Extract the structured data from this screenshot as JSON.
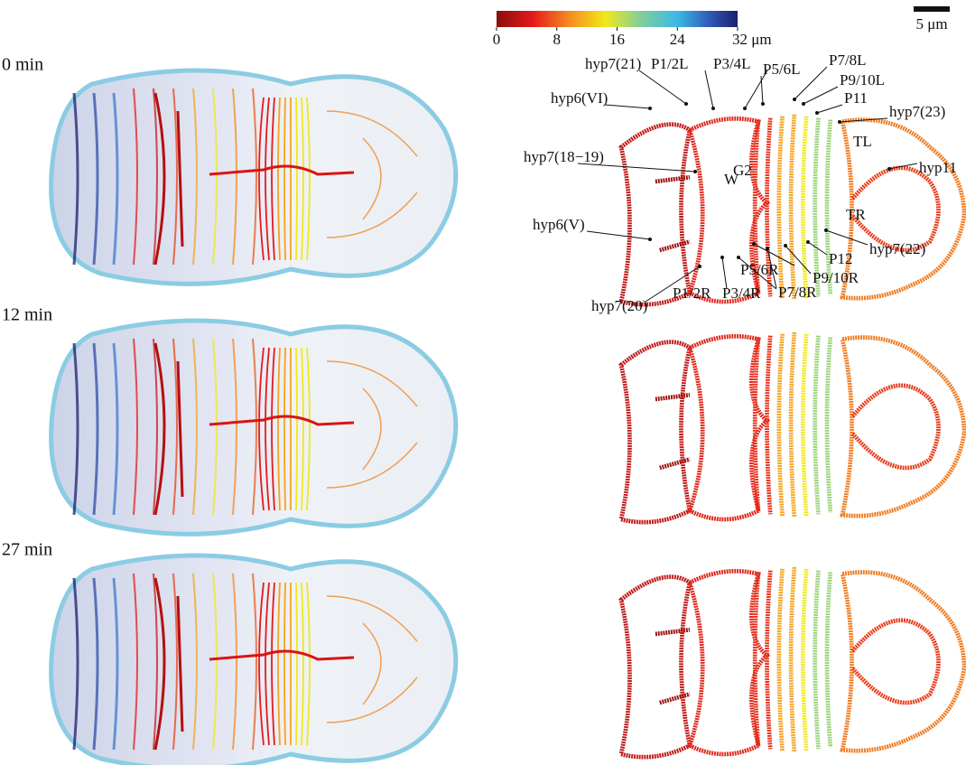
{
  "colorbar": {
    "range": [
      0,
      32
    ],
    "ticks": [
      0,
      8,
      16,
      24,
      {
        "value": 32,
        "label": "32 μm"
      }
    ]
  },
  "scale_bar": "5 μm",
  "panels": [
    "0 min",
    "12 min",
    "27 min"
  ],
  "annotations": [
    "hyp7(21)",
    "P1/2L",
    "P3/4L",
    "P5/6L",
    "P7/8L",
    "P9/10L",
    "P11",
    "hyp7(23)",
    "hyp6(VI)",
    "TL",
    "hyp7(18−19)",
    "G2",
    "hyp11",
    "W",
    "TR",
    "hyp6(V)",
    "hyp7(22)",
    "P12",
    "P5/6R",
    "P9/10R",
    "P7/8R",
    "P1/2R",
    "P3/4R",
    "hyp7(20)"
  ]
}
